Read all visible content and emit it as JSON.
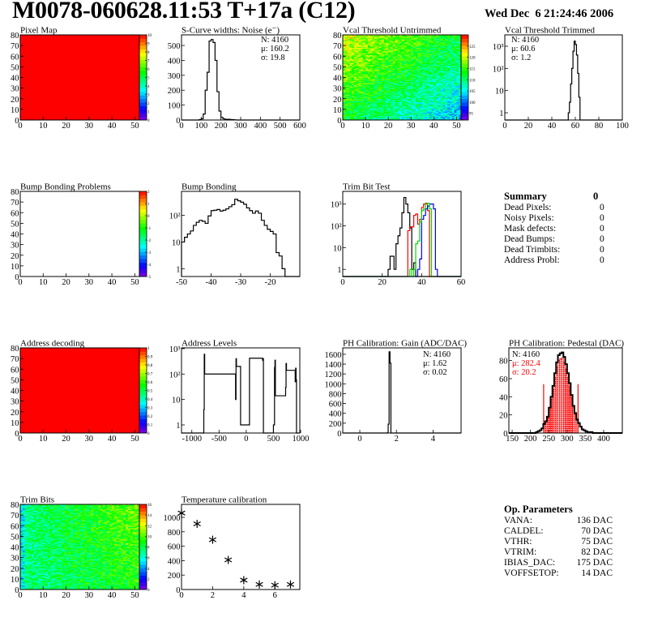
{
  "header": {
    "title": "M0078-060628.11:53 T+17a (C12)",
    "date": "Wed Dec  6 21:24:46 2006"
  },
  "summary": {
    "title": "Summary",
    "total": "0",
    "rows": [
      {
        "label": "Dead Pixels:",
        "value": "0"
      },
      {
        "label": "Noisy Pixels:",
        "value": "0"
      },
      {
        "label": "Mask defects:",
        "value": "0"
      },
      {
        "label": "Dead Bumps:",
        "value": "0"
      },
      {
        "label": "Dead Trimbits:",
        "value": "0"
      },
      {
        "label": "Address Probl:",
        "value": "0"
      }
    ]
  },
  "op_parameters": {
    "title": "Op. Parameters",
    "rows": [
      {
        "label": "VANA:",
        "value": "136 DAC"
      },
      {
        "label": "CALDEL:",
        "value": "70 DAC"
      },
      {
        "label": "VTHR:",
        "value": "75 DAC"
      },
      {
        "label": "VTRIM:",
        "value": "82 DAC"
      },
      {
        "label": "IBIAS_DAC:",
        "value": "175 DAC"
      },
      {
        "label": "VOFFSETOP:",
        "value": "14 DAC"
      }
    ]
  },
  "chart_data": [
    {
      "id": "pixel-map",
      "type": "heatmap",
      "title": "Pixel Map",
      "xlim": [
        0,
        52
      ],
      "ylim": [
        0,
        80
      ],
      "xticks": [
        0,
        10,
        20,
        30,
        40,
        50
      ],
      "xticklabels": [
        "0",
        "10",
        "20",
        "30",
        "40",
        "50"
      ],
      "yticks": [
        0,
        10,
        20,
        30,
        40,
        50,
        60,
        70,
        80
      ],
      "yticklabels": [
        "0",
        "10",
        "20",
        "30",
        "40",
        "50",
        "60",
        "70",
        "80"
      ],
      "zlim": [
        0,
        10
      ],
      "zticks": [
        0,
        1,
        2,
        3,
        4,
        5,
        6,
        7,
        8,
        9,
        10
      ],
      "zticklabels": [
        "0",
        "1",
        "2",
        "3",
        "4",
        "5",
        "6",
        "7",
        "8",
        "9",
        "10"
      ],
      "uniform_value": 10
    },
    {
      "id": "s-curve-noise",
      "type": "bar",
      "title": "S-Curve widths: Noise (e⁻)",
      "xlim": [
        0,
        600
      ],
      "ylim": [
        0,
        571
      ],
      "xticks": [
        0,
        100,
        200,
        300,
        400,
        500,
        600
      ],
      "xticklabels": [
        "0",
        "100",
        "200",
        "300",
        "400",
        "500",
        "600"
      ],
      "yticks": [
        0,
        100,
        200,
        300,
        400,
        500
      ],
      "yticklabels": [
        "0",
        "100",
        "200",
        "300",
        "400",
        "500"
      ],
      "series": [
        {
          "color": "#000000",
          "bin_width": 10,
          "x": [
            90,
            100,
            110,
            120,
            130,
            140,
            150,
            160,
            170,
            180,
            190,
            200,
            210,
            220,
            230,
            240,
            250,
            260,
            270
          ],
          "values": [
            3,
            8,
            40,
            200,
            320,
            530,
            540,
            520,
            400,
            190,
            60,
            18,
            8,
            5,
            5,
            4,
            3,
            2,
            1
          ]
        }
      ],
      "stats": [
        "N: 4160",
        "μ: 160.2",
        "σ: 19.8"
      ]
    },
    {
      "id": "vcal-threshold-untrimmed",
      "type": "heatmap",
      "title": "Vcal Threshold Untrimmed",
      "xlim": [
        0,
        52
      ],
      "ylim": [
        0,
        80
      ],
      "xticks": [
        0,
        10,
        20,
        30,
        40,
        50
      ],
      "xticklabels": [
        "0",
        "10",
        "20",
        "30",
        "40",
        "50"
      ],
      "yticks": [
        0,
        10,
        20,
        30,
        40,
        50,
        60,
        70,
        80
      ],
      "yticklabels": [
        "0",
        "10",
        "20",
        "30",
        "40",
        "50",
        "60",
        "70",
        "80"
      ],
      "zlim": [
        92,
        130
      ],
      "zticks": [
        95,
        100,
        105,
        110,
        115,
        120,
        125
      ],
      "zticklabels": [
        "95",
        "100",
        "105",
        "110",
        "115",
        "120",
        "125"
      ]
    },
    {
      "id": "vcal-threshold-trimmed",
      "type": "bar",
      "title": "Vcal Threshold Trimmed",
      "xlim": [
        0,
        100
      ],
      "ylim": [
        0.47,
        3260
      ],
      "log_y": true,
      "xticks": [
        0,
        20,
        40,
        60,
        80,
        100
      ],
      "xticklabels": [
        "0",
        "20",
        "40",
        "60",
        "80",
        "100"
      ],
      "yticks": [
        1,
        10,
        100,
        1000
      ],
      "yticklabels": [
        "1",
        "10",
        "10²",
        "10³"
      ],
      "series": [
        {
          "color": "#000000",
          "bin_width": 1,
          "x": [
            54,
            55,
            56,
            57,
            58,
            59,
            60,
            61,
            62,
            63,
            64
          ],
          "values": [
            1,
            3,
            20,
            100,
            600,
            1700,
            1200,
            400,
            60,
            5,
            0.3
          ]
        }
      ],
      "stats": [
        "N: 4160",
        "μ: 60.6",
        "σ:  1.2"
      ]
    },
    {
      "id": "bump-bonding-problems",
      "type": "heatmap",
      "title": "Bump Bonding Problems",
      "xlim": [
        0,
        52
      ],
      "ylim": [
        0,
        80
      ],
      "xticks": [
        0,
        10,
        20,
        30,
        40,
        50
      ],
      "xticklabels": [
        "0",
        "10",
        "20",
        "30",
        "40",
        "50"
      ],
      "yticks": [
        0,
        10,
        20,
        30,
        40,
        50,
        60,
        70,
        80
      ],
      "yticklabels": [
        "0",
        "10",
        "20",
        "30",
        "40",
        "50",
        "60",
        "70",
        "80"
      ],
      "zlim": [
        -5,
        2
      ],
      "zticks": [
        -5,
        -4,
        -3,
        -2,
        -1,
        0,
        1,
        2
      ],
      "zticklabels": [
        "-5",
        "-4",
        "-3",
        "-2",
        "-1",
        "0",
        "1",
        "2"
      ],
      "empty": true
    },
    {
      "id": "bump-bonding",
      "type": "bar",
      "title": "Bump Bonding",
      "xlim": [
        -50,
        -10
      ],
      "ylim": [
        0.51,
        790
      ],
      "log_y": true,
      "xticks": [
        -50,
        -40,
        -30,
        -20
      ],
      "xticklabels": [
        "-50",
        "-40",
        "-30",
        "-20"
      ],
      "yticks": [
        1,
        10,
        100
      ],
      "yticklabels": [
        "1",
        "10",
        "10²"
      ],
      "series": [
        {
          "color": "#000000",
          "bin_width": 1,
          "x": [
            -50,
            -49,
            -48,
            -47,
            -46,
            -45,
            -44,
            -43,
            -42,
            -41,
            -40,
            -39,
            -38,
            -37,
            -36,
            -35,
            -34,
            -33,
            -32,
            -31,
            -30,
            -29,
            -28,
            -27,
            -26,
            -25,
            -24,
            -23,
            -22,
            -21,
            -20,
            -19,
            -18,
            -17,
            -16
          ],
          "values": [
            10,
            15,
            20,
            26,
            42,
            55,
            65,
            60,
            50,
            95,
            150,
            155,
            165,
            145,
            155,
            175,
            210,
            250,
            400,
            350,
            310,
            260,
            190,
            150,
            120,
            145,
            120,
            65,
            42,
            30,
            25,
            20,
            4,
            3,
            1
          ]
        }
      ]
    },
    {
      "id": "trim-bit-test",
      "type": "bar",
      "title": "Trim Bit Test",
      "xlim": [
        0,
        60
      ],
      "ylim": [
        0.47,
        3830
      ],
      "log_y": true,
      "xticks": [
        0,
        20,
        40,
        60
      ],
      "xticklabels": [
        "0",
        "20",
        "40",
        "60"
      ],
      "yticks": [
        1,
        10,
        100,
        1000
      ],
      "yticklabels": [
        "1",
        "10",
        "10²",
        "10³"
      ],
      "series": [
        {
          "color": "#000000",
          "bin_width": 1,
          "x": [
            23,
            24,
            25,
            26,
            27,
            28,
            29,
            30,
            31,
            32,
            33,
            34,
            35,
            36,
            37
          ],
          "values": [
            1,
            4,
            4,
            1,
            15,
            35,
            80,
            400,
            2000,
            1000,
            400,
            80,
            1,
            2,
            0.3
          ]
        },
        {
          "color": "#ff0000",
          "bin_width": 1,
          "x": [
            33,
            34,
            35,
            36,
            37,
            38,
            39,
            40,
            41,
            42,
            43,
            44
          ],
          "values": [
            60,
            90,
            90,
            300,
            350,
            120,
            200,
            700,
            1000,
            1100,
            500,
            0.3
          ]
        },
        {
          "color": "#0000ff",
          "bin_width": 1,
          "x": [
            38,
            39,
            40,
            41,
            42,
            43,
            44,
            45,
            46,
            47,
            48
          ],
          "values": [
            1,
            3,
            200,
            300,
            600,
            800,
            1000,
            1000,
            600,
            1,
            0.3
          ]
        },
        {
          "color": "#00dd00",
          "bin_width": 1,
          "x": [
            34,
            35,
            36,
            37,
            38,
            39,
            40,
            41,
            42,
            43,
            44,
            45
          ],
          "values": [
            1,
            0.3,
            1,
            15,
            20,
            150,
            500,
            600,
            1000,
            1100,
            600,
            0.3
          ]
        }
      ]
    },
    {
      "id": "address-decoding",
      "type": "heatmap",
      "title": "Address decoding",
      "xlim": [
        0,
        52
      ],
      "ylim": [
        0,
        80
      ],
      "xticks": [
        0,
        10,
        20,
        30,
        40,
        50
      ],
      "xticklabels": [
        "0",
        "10",
        "20",
        "30",
        "40",
        "50"
      ],
      "yticks": [
        0,
        10,
        20,
        30,
        40,
        50,
        60,
        70,
        80
      ],
      "yticklabels": [
        "0",
        "10",
        "20",
        "30",
        "40",
        "50",
        "60",
        "70",
        "80"
      ],
      "zlim": [
        0,
        1
      ],
      "zticks": [
        0,
        0.1,
        0.2,
        0.3,
        0.4,
        0.5,
        0.6,
        0.7,
        0.8,
        0.9,
        1
      ],
      "zticklabels": [
        "0",
        "0.1",
        "0.2",
        "0.3",
        "0.4",
        "0.5",
        "0.6",
        "0.7",
        "0.8",
        "0.9",
        "1"
      ],
      "uniform_value": 1
    },
    {
      "id": "address-levels",
      "type": "bar",
      "title": "Address Levels",
      "xlim": [
        -1190,
        985
      ],
      "ylim": [
        0.48,
        1070
      ],
      "log_y": true,
      "xticks": [
        -1000,
        -500,
        0,
        500,
        1000
      ],
      "xticklabels": [
        "-1000",
        "-500",
        "0",
        "500",
        "1000"
      ],
      "yticks": [
        1,
        10,
        100,
        1000
      ],
      "yticklabels": [
        "1",
        "10",
        "10²",
        "10³"
      ],
      "series": [
        {
          "color": "#000000",
          "bin_width": 8,
          "x": [
            -780,
            -772,
            -764,
            -196,
            -188,
            -180,
            -104,
            52,
            60,
            68,
            300,
            308,
            316,
            500,
            520,
            528,
            536,
            724,
            732,
            740,
            900,
            908,
            916
          ],
          "values": [
            4,
            600,
            100,
            10,
            400,
            200,
            1,
            1,
            420,
            420,
            350,
            400,
            0.3,
            1,
            180,
            350,
            14,
            30,
            260,
            140,
            50,
            170,
            60
          ]
        }
      ]
    },
    {
      "id": "ph-calibration-gain",
      "type": "bar",
      "title": "PH Calibration: Gain (ADC/DAC)",
      "xlim": [
        -0.93,
        5.53
      ],
      "ylim": [
        0,
        1730
      ],
      "xticks": [
        0,
        2,
        4
      ],
      "xticklabels": [
        "0",
        "2",
        "4"
      ],
      "yticks": [
        0,
        200,
        400,
        600,
        800,
        1000,
        1200,
        1400,
        1600
      ],
      "yticklabels": [
        "0",
        "200",
        "400",
        "600",
        "800",
        "1000",
        "1200",
        "1400",
        "1600"
      ],
      "series": [
        {
          "color": "#000000",
          "bin_width": 0.05,
          "x": [
            1.5,
            1.55,
            1.6,
            1.65
          ],
          "values": [
            5,
            180,
            1650,
            1420
          ]
        }
      ],
      "stats": [
        "N: 4160",
        "μ: 1.62",
        "σ: 0.02"
      ]
    },
    {
      "id": "ph-calibration-pedestal",
      "type": "bar",
      "title": "PH Calibration: Pedestal (DAC)",
      "xlim": [
        141,
        451
      ],
      "ylim": [
        0,
        94
      ],
      "xticks": [
        150,
        200,
        250,
        300,
        350,
        400
      ],
      "xticklabels": [
        "150",
        "200",
        "250",
        "300",
        "350",
        "400"
      ],
      "yticks": [
        0,
        20,
        40,
        60,
        80
      ],
      "yticklabels": [
        "0",
        "20",
        "40",
        "60",
        "80"
      ],
      "series": [
        {
          "color": "#000000",
          "bin_width": 5,
          "x": [
            215,
            220,
            225,
            230,
            235,
            240,
            245,
            250,
            255,
            260,
            265,
            270,
            275,
            280,
            285,
            290,
            295,
            300,
            305,
            310,
            315,
            320,
            325,
            330,
            335,
            340,
            345,
            350,
            355,
            360,
            365
          ],
          "values": [
            1,
            2,
            3,
            5,
            10,
            13,
            18,
            28,
            40,
            52,
            66,
            78,
            86,
            88,
            89,
            84,
            76,
            66,
            55,
            42,
            30,
            22,
            15,
            11,
            7,
            4,
            3,
            2,
            1,
            1,
            1
          ]
        }
      ],
      "fit": {
        "color": "#ff0000",
        "range": [
          236,
          330
        ],
        "cut_height": 54
      },
      "stats": [
        "N: 4160",
        "μ: 282.4",
        "σ: 20.2"
      ],
      "stats_colors": [
        "#000000",
        "#ff0000",
        "#ff0000"
      ]
    },
    {
      "id": "trim-bits",
      "type": "heatmap",
      "title": "Trim Bits",
      "xlim": [
        0,
        52
      ],
      "ylim": [
        0,
        80
      ],
      "xticks": [
        0,
        10,
        20,
        30,
        40,
        50
      ],
      "xticklabels": [
        "0",
        "10",
        "20",
        "30",
        "40",
        "50"
      ],
      "yticks": [
        0,
        10,
        20,
        30,
        40,
        50,
        60,
        70,
        80
      ],
      "yticklabels": [
        "0",
        "10",
        "20",
        "30",
        "40",
        "50",
        "60",
        "70",
        "80"
      ],
      "zlim": [
        0,
        16
      ],
      "zticks": [
        0,
        2,
        4,
        6,
        8,
        10,
        12,
        14,
        16
      ],
      "zticklabels": [
        "0",
        "2",
        "4",
        "6",
        "8",
        "10",
        "12",
        "14",
        "16"
      ]
    },
    {
      "id": "temperature-calibration",
      "type": "scatter",
      "title": "Temperature calibration",
      "xlim": [
        0,
        7.6
      ],
      "ylim": [
        0,
        1180
      ],
      "xticks": [
        0,
        2,
        4,
        6
      ],
      "xticklabels": [
        "0",
        "2",
        "4",
        "6"
      ],
      "yticks": [
        0,
        200,
        400,
        600,
        800,
        1000
      ],
      "yticklabels": [
        "0",
        "200",
        "400",
        "600",
        "800",
        "1000"
      ],
      "points": {
        "x": [
          0,
          1,
          2,
          3,
          4,
          5,
          6,
          7
        ],
        "y": [
          1060,
          910,
          690,
          410,
          130,
          70,
          60,
          70
        ]
      },
      "marker": "asterisk"
    }
  ]
}
